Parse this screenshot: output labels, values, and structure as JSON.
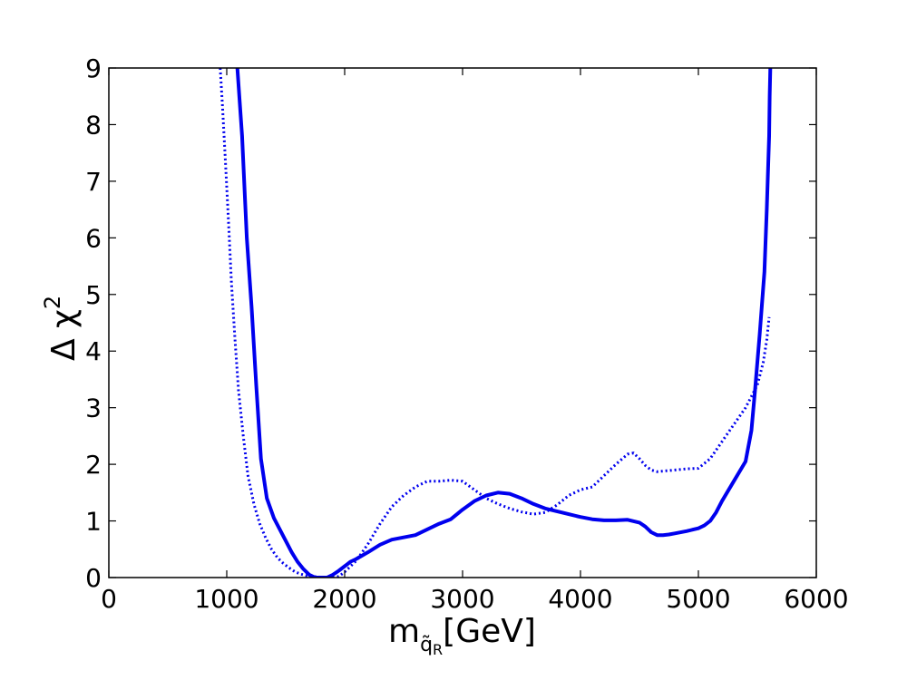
{
  "chart_data": {
    "type": "line",
    "title": "",
    "xlabel": {
      "main": "m",
      "sub_tilde": "q̃",
      "sub_index": "R",
      "unit": "[GeV]"
    },
    "ylabel": {
      "main": "Δ χ",
      "superscript": "2"
    },
    "xlim": [
      0,
      6000
    ],
    "ylim": [
      0,
      9
    ],
    "xticks": [
      0,
      1000,
      2000,
      3000,
      4000,
      5000,
      6000
    ],
    "yticks": [
      0,
      1,
      2,
      3,
      4,
      5,
      6,
      7,
      8,
      9
    ],
    "grid": false,
    "legend": "none",
    "colors": {
      "series": "#0000ee",
      "axes": "#000000",
      "background": "#ffffff"
    },
    "series": [
      {
        "style": "solid",
        "x": [
          1090,
          1130,
          1170,
          1210,
          1250,
          1290,
          1340,
          1400,
          1450,
          1500,
          1550,
          1600,
          1650,
          1700,
          1750,
          1800,
          1850,
          1900,
          1950,
          2000,
          2050,
          2100,
          2200,
          2300,
          2400,
          2500,
          2600,
          2700,
          2800,
          2900,
          3000,
          3100,
          3200,
          3300,
          3400,
          3500,
          3600,
          3700,
          3800,
          3900,
          4000,
          4100,
          4200,
          4300,
          4400,
          4500,
          4550,
          4600,
          4650,
          4700,
          4750,
          4800,
          4900,
          5000,
          5050,
          5100,
          5150,
          5200,
          5300,
          5400,
          5450,
          5480,
          5520,
          5560,
          5580,
          5600,
          5605,
          5610
        ],
        "y": [
          9.0,
          7.8,
          6.0,
          4.8,
          3.4,
          2.1,
          1.4,
          1.05,
          0.85,
          0.65,
          0.45,
          0.28,
          0.15,
          0.05,
          0.0,
          0.0,
          0.0,
          0.05,
          0.12,
          0.2,
          0.28,
          0.33,
          0.45,
          0.58,
          0.67,
          0.71,
          0.75,
          0.85,
          0.95,
          1.03,
          1.2,
          1.35,
          1.45,
          1.5,
          1.48,
          1.4,
          1.3,
          1.22,
          1.17,
          1.12,
          1.07,
          1.03,
          1.01,
          1.01,
          1.02,
          0.97,
          0.9,
          0.8,
          0.75,
          0.75,
          0.76,
          0.78,
          0.82,
          0.87,
          0.92,
          1.0,
          1.15,
          1.35,
          1.7,
          2.05,
          2.6,
          3.3,
          4.3,
          5.4,
          6.5,
          7.8,
          8.5,
          9.0
        ]
      },
      {
        "style": "dotted",
        "x": [
          945,
          965,
          990,
          1015,
          1040,
          1070,
          1100,
          1140,
          1180,
          1230,
          1280,
          1330,
          1380,
          1430,
          1480,
          1530,
          1580,
          1630,
          1680,
          1730,
          1780,
          1830,
          1880,
          1950,
          2000,
          2100,
          2200,
          2300,
          2400,
          2500,
          2600,
          2700,
          2800,
          2900,
          3000,
          3100,
          3200,
          3300,
          3400,
          3500,
          3600,
          3700,
          3800,
          3900,
          4000,
          4100,
          4200,
          4300,
          4400,
          4450,
          4500,
          4550,
          4600,
          4650,
          4700,
          4800,
          4900,
          5000,
          5100,
          5200,
          5300,
          5400,
          5450,
          5500,
          5550,
          5580,
          5600
        ],
        "y": [
          9.0,
          8.3,
          7.3,
          6.3,
          5.2,
          4.2,
          3.3,
          2.5,
          1.8,
          1.3,
          0.95,
          0.7,
          0.5,
          0.35,
          0.25,
          0.17,
          0.1,
          0.06,
          0.03,
          0.02,
          0.01,
          0.0,
          0.0,
          0.02,
          0.1,
          0.3,
          0.6,
          0.95,
          1.25,
          1.45,
          1.6,
          1.7,
          1.7,
          1.72,
          1.7,
          1.55,
          1.4,
          1.3,
          1.22,
          1.16,
          1.12,
          1.15,
          1.28,
          1.45,
          1.55,
          1.6,
          1.8,
          2.0,
          2.18,
          2.2,
          2.1,
          1.98,
          1.9,
          1.87,
          1.88,
          1.9,
          1.92,
          1.93,
          2.1,
          2.4,
          2.7,
          3.0,
          3.2,
          3.4,
          3.8,
          4.2,
          4.6
        ]
      }
    ]
  }
}
